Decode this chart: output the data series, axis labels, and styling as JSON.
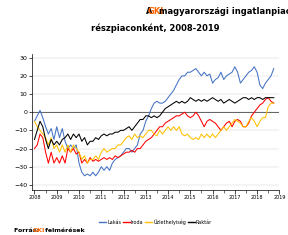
{
  "title_color_gki": "#FF6600",
  "title_color_rest": "#000000",
  "ylabel_ticks": [
    30,
    20,
    10,
    0,
    -10,
    -20,
    -30,
    -40
  ],
  "ylim": [
    -43,
    32
  ],
  "legend": [
    "Lakás",
    "Iroda",
    "Üzlethelyiség",
    "Raktár"
  ],
  "line_colors": [
    "#4472C4",
    "#FF0000",
    "#FFC000",
    "#000000"
  ],
  "background_color": "#FFFFFF",
  "lakas": [
    -5,
    -2,
    1,
    -3,
    -8,
    -12,
    -9,
    -15,
    -8,
    -14,
    -9,
    -16,
    -20,
    -18,
    -20,
    -18,
    -28,
    -33,
    -35,
    -34,
    -35,
    -33,
    -35,
    -33,
    -30,
    -32,
    -30,
    -32,
    -28,
    -26,
    -25,
    -24,
    -22,
    -20,
    -20,
    -22,
    -20,
    -18,
    -12,
    -10,
    -5,
    -2,
    2,
    5,
    6,
    5,
    5,
    6,
    8,
    10,
    12,
    15,
    18,
    20,
    20,
    22,
    22,
    23,
    24,
    22,
    20,
    22,
    20,
    21,
    16,
    18,
    19,
    22,
    18,
    20,
    21,
    22,
    25,
    22,
    16,
    18,
    20,
    22,
    23,
    25,
    22,
    15,
    13,
    16,
    18,
    20,
    24
  ],
  "iroda": [
    -20,
    -18,
    -12,
    -14,
    -22,
    -28,
    -22,
    -28,
    -25,
    -28,
    -24,
    -28,
    -20,
    -22,
    -20,
    -23,
    -22,
    -28,
    -26,
    -28,
    -25,
    -27,
    -26,
    -27,
    -26,
    -25,
    -26,
    -25,
    -26,
    -24,
    -25,
    -24,
    -23,
    -22,
    -22,
    -21,
    -22,
    -20,
    -20,
    -18,
    -16,
    -15,
    -14,
    -12,
    -10,
    -8,
    -8,
    -6,
    -5,
    -4,
    -3,
    -2,
    -2,
    -1,
    0,
    -2,
    -3,
    -2,
    0,
    -2,
    -5,
    -8,
    -5,
    -4,
    -5,
    -6,
    -8,
    -10,
    -8,
    -6,
    -5,
    -8,
    -5,
    -4,
    -5,
    -8,
    -8,
    -6,
    -2,
    0,
    2,
    4,
    5,
    7,
    8,
    6,
    5
  ],
  "uzlethelyiseg": [
    -5,
    -8,
    -10,
    -12,
    -14,
    -18,
    -14,
    -20,
    -18,
    -22,
    -18,
    -22,
    -18,
    -22,
    -18,
    -20,
    -22,
    -26,
    -24,
    -28,
    -26,
    -26,
    -24,
    -26,
    -22,
    -20,
    -22,
    -21,
    -20,
    -20,
    -18,
    -18,
    -16,
    -14,
    -13,
    -15,
    -12,
    -14,
    -13,
    -14,
    -12,
    -10,
    -10,
    -12,
    -13,
    -10,
    -12,
    -10,
    -8,
    -10,
    -8,
    -10,
    -8,
    -12,
    -13,
    -12,
    -14,
    -15,
    -14,
    -15,
    -12,
    -14,
    -12,
    -14,
    -12,
    -14,
    -12,
    -10,
    -8,
    -10,
    -8,
    -6,
    -4,
    -5,
    -6,
    -8,
    -8,
    -5,
    -3,
    -5,
    -8,
    -5,
    -3,
    -3,
    3,
    5,
    5
  ],
  "raktar": [
    -15,
    -10,
    -5,
    -8,
    -15,
    -20,
    -15,
    -18,
    -16,
    -18,
    -15,
    -14,
    -12,
    -15,
    -12,
    -14,
    -12,
    -16,
    -14,
    -18,
    -16,
    -16,
    -14,
    -15,
    -13,
    -12,
    -13,
    -12,
    -12,
    -11,
    -11,
    -10,
    -10,
    -9,
    -8,
    -10,
    -8,
    -6,
    -4,
    -4,
    -2,
    -2,
    -3,
    -2,
    -3,
    -2,
    0,
    2,
    3,
    4,
    5,
    6,
    5,
    6,
    5,
    6,
    8,
    7,
    6,
    7,
    6,
    7,
    6,
    7,
    8,
    7,
    6,
    7,
    5,
    6,
    7,
    6,
    5,
    6,
    7,
    8,
    8,
    7,
    8,
    7,
    8,
    8,
    7,
    8,
    8,
    8,
    8
  ],
  "num_years": 12,
  "year_start": 2008
}
